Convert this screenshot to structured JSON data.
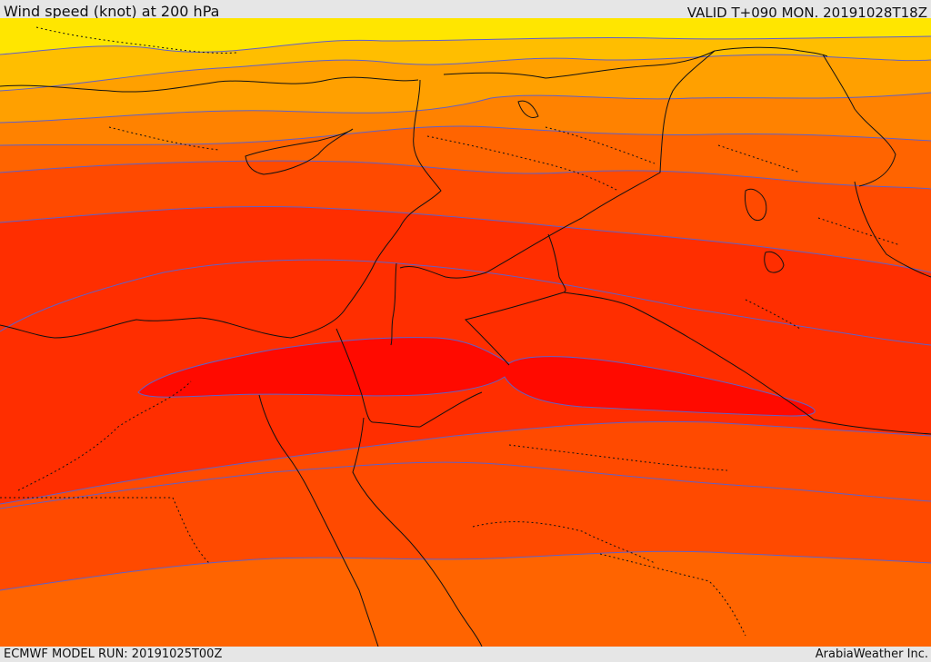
{
  "header": {
    "title": "Wind speed (knot) at 200 hPa",
    "valid": "VALID T+090 MON. 20191028T18Z"
  },
  "footer": {
    "model_run": "ECMWF MODEL RUN: 20191025T00Z",
    "credit": "ArabiaWeather Inc."
  },
  "map": {
    "fill_levels": [
      "#ffe600",
      "#ffbe00",
      "#ffa000",
      "#ff8200",
      "#ff6400",
      "#ff4a00",
      "#ff2e00",
      "#ff0a00"
    ],
    "contour_color": "#6060c8",
    "boundary_color": "#111111"
  }
}
